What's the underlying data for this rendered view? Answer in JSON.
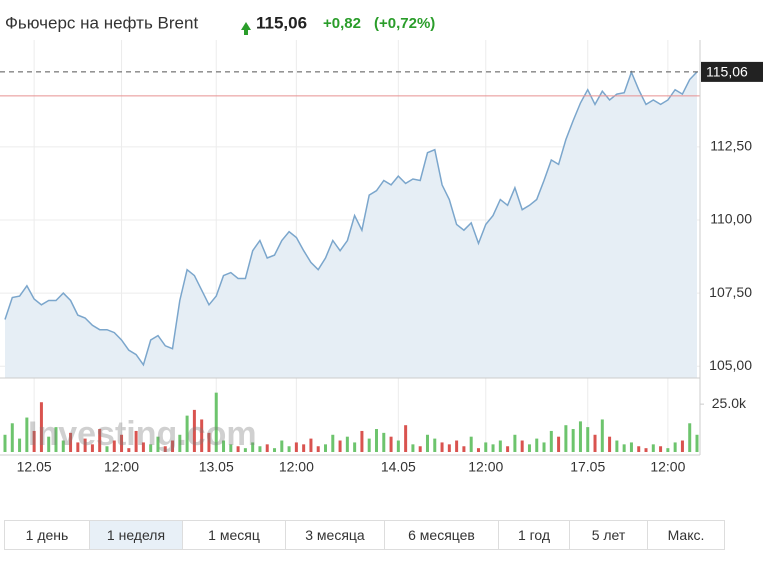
{
  "chart_data": {
    "type": "line",
    "title": "Фьючерс на нефть Brent",
    "last_price": "115,06",
    "change": "+0,82",
    "change_percent": "(+0,72%)",
    "watermark": "Investing.com",
    "categories": [
      null,
      null,
      null,
      null,
      "12.05",
      null,
      null,
      null,
      null,
      null,
      null,
      null,
      null,
      null,
      null,
      null,
      "12:00",
      null,
      null,
      null,
      null,
      null,
      null,
      null,
      null,
      null,
      null,
      null,
      null,
      "13.05",
      null,
      null,
      null,
      null,
      null,
      null,
      null,
      null,
      null,
      null,
      "12:00",
      null,
      null,
      null,
      null,
      null,
      null,
      null,
      null,
      null,
      null,
      null,
      null,
      null,
      "14.05",
      null,
      null,
      null,
      null,
      null,
      null,
      null,
      null,
      null,
      null,
      null,
      "12:00",
      null,
      null,
      null,
      null,
      null,
      null,
      null,
      null,
      null,
      null,
      null,
      null,
      null,
      "17.05",
      null,
      null,
      null,
      null,
      null,
      null,
      null,
      null,
      null,
      null,
      "12:00",
      null,
      null,
      null,
      null
    ],
    "series": [
      {
        "color": "#7ba6cc",
        "fill": "#e6eef5",
        "values": [
          106.6,
          107.35,
          107.4,
          107.75,
          107.3,
          107.1,
          107.25,
          107.25,
          107.5,
          107.25,
          106.75,
          106.65,
          106.4,
          106.25,
          106.25,
          106.15,
          105.9,
          105.55,
          105.4,
          105.05,
          105.9,
          106.05,
          105.7,
          105.6,
          107.25,
          108.3,
          108.1,
          107.6,
          107.1,
          107.4,
          108.1,
          108.2,
          108.0,
          108.0,
          108.95,
          109.3,
          108.7,
          108.8,
          109.3,
          109.6,
          109.4,
          108.95,
          108.55,
          108.3,
          108.7,
          109.3,
          108.95,
          109.3,
          110.15,
          109.65,
          110.85,
          111.0,
          111.35,
          111.2,
          111.5,
          111.25,
          111.4,
          111.35,
          112.3,
          112.4,
          111.2,
          110.7,
          109.85,
          109.65,
          109.9,
          109.2,
          109.85,
          110.15,
          110.7,
          110.5,
          111.1,
          110.35,
          110.5,
          110.7,
          111.35,
          112.05,
          111.9,
          112.75,
          113.4,
          114.0,
          114.45,
          113.95,
          114.4,
          114.1,
          114.3,
          114.35,
          115.05,
          114.45,
          113.95,
          114.1,
          113.95,
          114.1,
          114.45,
          114.3,
          114.8,
          115.06
        ]
      },
      {
        "type": "bar",
        "axis": "y2",
        "up_color": "#6dc46d",
        "down_color": "#d9534f",
        "values": [
          9000,
          15000,
          7000,
          18000,
          11000,
          26000,
          8000,
          13000,
          6000,
          10000,
          5000,
          7000,
          4000,
          12000,
          3000,
          6000,
          9000,
          2000,
          11000,
          5000,
          4000,
          8000,
          3000,
          6000,
          9000,
          19000,
          22000,
          17000,
          10000,
          31000,
          6000,
          4000,
          3000,
          2000,
          5000,
          3000,
          4000,
          2000,
          6000,
          3000,
          5000,
          4000,
          7000,
          3000,
          4000,
          9000,
          6000,
          8000,
          5000,
          11000,
          7000,
          12000,
          10000,
          8000,
          6000,
          14000,
          4000,
          3000,
          9000,
          7000,
          5000,
          4000,
          6000,
          3000,
          8000,
          2000,
          5000,
          4000,
          6000,
          3000,
          9000,
          6000,
          4000,
          7000,
          5000,
          11000,
          8000,
          14000,
          12000,
          16000,
          13000,
          9000,
          17000,
          8000,
          6000,
          4000,
          5000,
          3000,
          2000,
          4000,
          3000,
          2000,
          5000,
          6000,
          15000,
          9000
        ]
      }
    ],
    "reference_lines": [
      {
        "value": 115.06,
        "color": "#555555",
        "dashed": true
      },
      {
        "value": 114.24,
        "color": "#e89090",
        "dashed": false
      }
    ],
    "ylim": [
      104.6,
      116.15
    ],
    "yticks": [
      {
        "value": 105,
        "label": "105,00"
      },
      {
        "value": 107.5,
        "label": "107,50"
      },
      {
        "value": 110,
        "label": "110,00"
      },
      {
        "value": 112.5,
        "label": "112,50"
      }
    ],
    "y2lim": [
      0,
      35000
    ],
    "y2ticks": [
      {
        "value": 25000,
        "label": "25.0k"
      }
    ],
    "grid": true
  },
  "range_buttons": {
    "items": [
      "1 день",
      "1 неделя",
      "1 месяц",
      "3 месяца",
      "6 месяцев",
      "1 год",
      "5 лет",
      "Макс."
    ],
    "selected": 1
  }
}
